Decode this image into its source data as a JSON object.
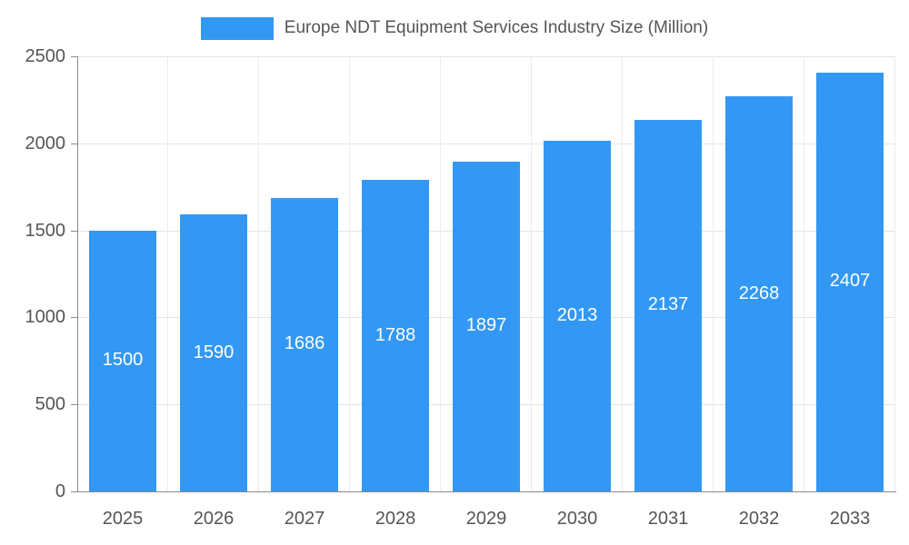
{
  "chart_data": {
    "type": "bar",
    "title": "Europe NDT Equipment Services Industry Size (Million)",
    "categories": [
      "2025",
      "2026",
      "2027",
      "2028",
      "2029",
      "2030",
      "2031",
      "2032",
      "2033"
    ],
    "values": [
      1500,
      1590,
      1686,
      1788,
      1897,
      2013,
      2137,
      2268,
      2407
    ],
    "xlabel": "",
    "ylabel": "",
    "ylim": [
      0,
      2500
    ],
    "yticks": [
      0,
      500,
      1000,
      1500,
      2000,
      2500
    ],
    "grid": true,
    "legend_position": "top-center",
    "bar_color": "#3398f4",
    "value_label_color": "#ffffff",
    "axis_text_color": "#555555"
  }
}
